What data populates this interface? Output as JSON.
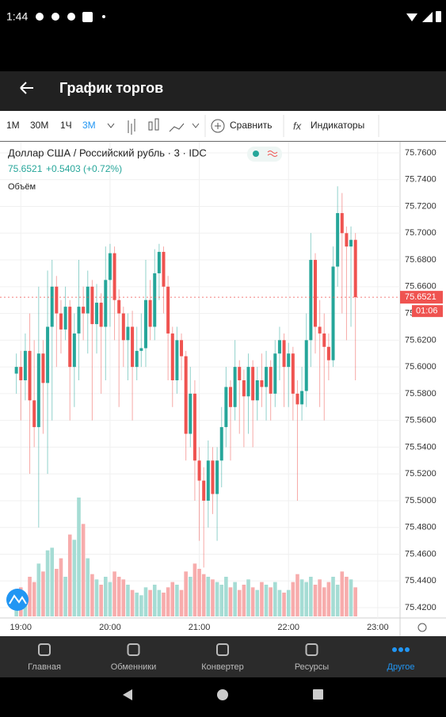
{
  "status_bar": {
    "time": "1:44"
  },
  "app_bar": {
    "title": "График торгов"
  },
  "toolbar": {
    "intervals": [
      "1М",
      "30М",
      "1Ч",
      "3М"
    ],
    "active_interval": 3,
    "compare": "Сравнить",
    "indicators_icon": "fx",
    "indicators": "Индикаторы"
  },
  "chart_data": {
    "type": "candlestick",
    "title": "Доллар США / Российский рубль · 3 · IDC",
    "price": "75.6521",
    "change": "+0.5403 (+0.72%)",
    "volume_label": "Объём",
    "countdown": "01:06",
    "up_color": "#26a69a",
    "down_color": "#ef5350",
    "up_volume_color": "#a5dcd4",
    "down_volume_color": "#f7acac",
    "grid": true,
    "xlim": [
      "18:46",
      "23:15"
    ],
    "xticks": [
      "19:00",
      "20:00",
      "21:00",
      "22:00",
      "23:00"
    ],
    "ylim": [
      75.4135,
      75.7665
    ],
    "yticks": [
      {
        "value": 75.42,
        "label": "75.4200"
      },
      {
        "value": 75.44,
        "label": "75.4400"
      },
      {
        "value": 75.46,
        "label": "75.4600"
      },
      {
        "value": 75.48,
        "label": "75.4800"
      },
      {
        "value": 75.5,
        "label": "75.5000"
      },
      {
        "value": 75.52,
        "label": "75.5200"
      },
      {
        "value": 75.54,
        "label": "75.5400"
      },
      {
        "value": 75.56,
        "label": "75.5600"
      },
      {
        "value": 75.58,
        "label": "75.5800"
      },
      {
        "value": 75.6,
        "label": "75.6000"
      },
      {
        "value": 75.62,
        "label": "75.6200"
      },
      {
        "value": 75.64,
        "label": "75.6400"
      },
      {
        "value": 75.66,
        "label": "75.6600"
      },
      {
        "value": 75.68,
        "label": "75.6800"
      },
      {
        "value": 75.7,
        "label": "75.7000"
      },
      {
        "value": 75.72,
        "label": "75.7200"
      },
      {
        "value": 75.74,
        "label": "75.7400"
      },
      {
        "value": 75.76,
        "label": "75.7600"
      }
    ],
    "candles": [
      {
        "x": "18:57",
        "o": 75.595,
        "h": 75.61,
        "l": 75.58,
        "c": 75.6,
        "v": 18
      },
      {
        "x": "19:00",
        "o": 75.6,
        "h": 75.612,
        "l": 75.56,
        "c": 75.59,
        "v": 22
      },
      {
        "x": "19:03",
        "o": 75.59,
        "h": 75.625,
        "l": 75.575,
        "c": 75.612,
        "v": 16
      },
      {
        "x": "19:06",
        "o": 75.612,
        "h": 75.64,
        "l": 75.52,
        "c": 75.575,
        "v": 30
      },
      {
        "x": "19:09",
        "o": 75.575,
        "h": 75.62,
        "l": 75.54,
        "c": 75.555,
        "v": 26
      },
      {
        "x": "19:12",
        "o": 75.555,
        "h": 75.66,
        "l": 75.48,
        "c": 75.61,
        "v": 40
      },
      {
        "x": "19:15",
        "o": 75.61,
        "h": 75.62,
        "l": 75.55,
        "c": 75.588,
        "v": 34
      },
      {
        "x": "19:18",
        "o": 75.588,
        "h": 75.672,
        "l": 75.52,
        "c": 75.63,
        "v": 50
      },
      {
        "x": "19:21",
        "o": 75.63,
        "h": 75.68,
        "l": 75.56,
        "c": 75.66,
        "v": 52
      },
      {
        "x": "19:24",
        "o": 75.66,
        "h": 75.668,
        "l": 75.6,
        "c": 75.64,
        "v": 36
      },
      {
        "x": "19:27",
        "o": 75.64,
        "h": 75.65,
        "l": 75.61,
        "c": 75.628,
        "v": 44
      },
      {
        "x": "19:30",
        "o": 75.628,
        "h": 75.66,
        "l": 75.62,
        "c": 75.645,
        "v": 30
      },
      {
        "x": "19:33",
        "o": 75.645,
        "h": 75.65,
        "l": 75.56,
        "c": 75.6,
        "v": 62
      },
      {
        "x": "19:36",
        "o": 75.6,
        "h": 75.64,
        "l": 75.57,
        "c": 75.625,
        "v": 58
      },
      {
        "x": "19:39",
        "o": 75.625,
        "h": 75.68,
        "l": 75.59,
        "c": 75.645,
        "v": 90
      },
      {
        "x": "19:42",
        "o": 75.645,
        "h": 75.66,
        "l": 75.62,
        "c": 75.64,
        "v": 70
      },
      {
        "x": "19:45",
        "o": 75.64,
        "h": 75.672,
        "l": 75.61,
        "c": 75.66,
        "v": 44
      },
      {
        "x": "19:48",
        "o": 75.66,
        "h": 75.665,
        "l": 75.56,
        "c": 75.632,
        "v": 32
      },
      {
        "x": "19:51",
        "o": 75.632,
        "h": 75.662,
        "l": 75.61,
        "c": 75.648,
        "v": 28
      },
      {
        "x": "19:54",
        "o": 75.648,
        "h": 75.655,
        "l": 75.58,
        "c": 75.63,
        "v": 24
      },
      {
        "x": "19:57",
        "o": 75.63,
        "h": 75.69,
        "l": 75.59,
        "c": 75.665,
        "v": 30
      },
      {
        "x": "20:00",
        "o": 75.665,
        "h": 75.692,
        "l": 75.63,
        "c": 75.685,
        "v": 26
      },
      {
        "x": "20:03",
        "o": 75.685,
        "h": 75.69,
        "l": 75.62,
        "c": 75.65,
        "v": 34
      },
      {
        "x": "20:06",
        "o": 75.65,
        "h": 75.658,
        "l": 75.57,
        "c": 75.64,
        "v": 30
      },
      {
        "x": "20:09",
        "o": 75.64,
        "h": 75.645,
        "l": 75.6,
        "c": 75.62,
        "v": 28
      },
      {
        "x": "20:12",
        "o": 75.62,
        "h": 75.64,
        "l": 75.59,
        "c": 75.63,
        "v": 24
      },
      {
        "x": "20:15",
        "o": 75.63,
        "h": 75.642,
        "l": 75.56,
        "c": 75.6,
        "v": 20
      },
      {
        "x": "20:18",
        "o": 75.6,
        "h": 75.63,
        "l": 75.59,
        "c": 75.612,
        "v": 18
      },
      {
        "x": "20:21",
        "o": 75.612,
        "h": 75.64,
        "l": 75.6,
        "c": 75.614,
        "v": 16
      },
      {
        "x": "20:24",
        "o": 75.614,
        "h": 75.68,
        "l": 75.6,
        "c": 75.65,
        "v": 22
      },
      {
        "x": "20:27",
        "o": 75.65,
        "h": 75.665,
        "l": 75.62,
        "c": 75.63,
        "v": 20
      },
      {
        "x": "20:30",
        "o": 75.63,
        "h": 75.688,
        "l": 75.62,
        "c": 75.67,
        "v": 24
      },
      {
        "x": "20:33",
        "o": 75.67,
        "h": 75.692,
        "l": 75.65,
        "c": 75.686,
        "v": 20
      },
      {
        "x": "20:36",
        "o": 75.686,
        "h": 75.69,
        "l": 75.64,
        "c": 75.66,
        "v": 18
      },
      {
        "x": "20:39",
        "o": 75.66,
        "h": 75.668,
        "l": 75.59,
        "c": 75.625,
        "v": 22
      },
      {
        "x": "20:42",
        "o": 75.625,
        "h": 75.63,
        "l": 75.57,
        "c": 75.59,
        "v": 26
      },
      {
        "x": "20:45",
        "o": 75.59,
        "h": 75.63,
        "l": 75.58,
        "c": 75.62,
        "v": 24
      },
      {
        "x": "20:48",
        "o": 75.62,
        "h": 75.625,
        "l": 75.59,
        "c": 75.608,
        "v": 20
      },
      {
        "x": "20:51",
        "o": 75.608,
        "h": 75.612,
        "l": 75.53,
        "c": 75.55,
        "v": 34
      },
      {
        "x": "20:54",
        "o": 75.55,
        "h": 75.6,
        "l": 75.54,
        "c": 75.58,
        "v": 30
      },
      {
        "x": "20:57",
        "o": 75.58,
        "h": 75.59,
        "l": 75.5,
        "c": 75.53,
        "v": 40
      },
      {
        "x": "21:00",
        "o": 75.53,
        "h": 75.54,
        "l": 75.47,
        "c": 75.515,
        "v": 36
      },
      {
        "x": "21:03",
        "o": 75.515,
        "h": 75.525,
        "l": 75.45,
        "c": 75.5,
        "v": 32
      },
      {
        "x": "21:06",
        "o": 75.5,
        "h": 75.545,
        "l": 75.48,
        "c": 75.53,
        "v": 30
      },
      {
        "x": "21:09",
        "o": 75.53,
        "h": 75.54,
        "l": 75.49,
        "c": 75.505,
        "v": 28
      },
      {
        "x": "21:12",
        "o": 75.505,
        "h": 75.54,
        "l": 75.47,
        "c": 75.53,
        "v": 26
      },
      {
        "x": "21:15",
        "o": 75.53,
        "h": 75.57,
        "l": 75.51,
        "c": 75.555,
        "v": 24
      },
      {
        "x": "21:18",
        "o": 75.555,
        "h": 75.6,
        "l": 75.54,
        "c": 75.585,
        "v": 30
      },
      {
        "x": "21:21",
        "o": 75.585,
        "h": 75.59,
        "l": 75.53,
        "c": 75.57,
        "v": 22
      },
      {
        "x": "21:24",
        "o": 75.57,
        "h": 75.62,
        "l": 75.56,
        "c": 75.6,
        "v": 26
      },
      {
        "x": "21:27",
        "o": 75.6,
        "h": 75.605,
        "l": 75.55,
        "c": 75.59,
        "v": 20
      },
      {
        "x": "21:30",
        "o": 75.59,
        "h": 75.598,
        "l": 75.54,
        "c": 75.578,
        "v": 24
      },
      {
        "x": "21:33",
        "o": 75.578,
        "h": 75.61,
        "l": 75.55,
        "c": 75.6,
        "v": 28
      },
      {
        "x": "21:36",
        "o": 75.6,
        "h": 75.605,
        "l": 75.54,
        "c": 75.575,
        "v": 22
      },
      {
        "x": "21:39",
        "o": 75.575,
        "h": 75.6,
        "l": 75.56,
        "c": 75.59,
        "v": 20
      },
      {
        "x": "21:42",
        "o": 75.59,
        "h": 75.61,
        "l": 75.57,
        "c": 75.585,
        "v": 26
      },
      {
        "x": "21:45",
        "o": 75.585,
        "h": 75.612,
        "l": 75.56,
        "c": 75.6,
        "v": 24
      },
      {
        "x": "21:48",
        "o": 75.6,
        "h": 75.605,
        "l": 75.56,
        "c": 75.58,
        "v": 22
      },
      {
        "x": "21:51",
        "o": 75.58,
        "h": 75.62,
        "l": 75.57,
        "c": 75.61,
        "v": 26
      },
      {
        "x": "21:54",
        "o": 75.61,
        "h": 75.63,
        "l": 75.59,
        "c": 75.62,
        "v": 20
      },
      {
        "x": "21:57",
        "o": 75.62,
        "h": 75.625,
        "l": 75.57,
        "c": 75.6,
        "v": 18
      },
      {
        "x": "22:00",
        "o": 75.6,
        "h": 75.618,
        "l": 75.57,
        "c": 75.61,
        "v": 20
      },
      {
        "x": "22:03",
        "o": 75.61,
        "h": 75.615,
        "l": 75.56,
        "c": 75.58,
        "v": 26
      },
      {
        "x": "22:06",
        "o": 75.58,
        "h": 75.59,
        "l": 75.5,
        "c": 75.572,
        "v": 32
      },
      {
        "x": "22:09",
        "o": 75.572,
        "h": 75.6,
        "l": 75.56,
        "c": 75.582,
        "v": 28
      },
      {
        "x": "22:12",
        "o": 75.582,
        "h": 75.64,
        "l": 75.57,
        "c": 75.62,
        "v": 26
      },
      {
        "x": "22:15",
        "o": 75.62,
        "h": 75.7,
        "l": 75.6,
        "c": 75.68,
        "v": 30
      },
      {
        "x": "22:18",
        "o": 75.68,
        "h": 75.685,
        "l": 75.61,
        "c": 75.63,
        "v": 24
      },
      {
        "x": "22:21",
        "o": 75.63,
        "h": 75.65,
        "l": 75.57,
        "c": 75.625,
        "v": 28
      },
      {
        "x": "22:24",
        "o": 75.625,
        "h": 75.64,
        "l": 75.56,
        "c": 75.615,
        "v": 22
      },
      {
        "x": "22:27",
        "o": 75.615,
        "h": 75.625,
        "l": 75.59,
        "c": 75.605,
        "v": 26
      },
      {
        "x": "22:30",
        "o": 75.605,
        "h": 75.69,
        "l": 75.6,
        "c": 75.675,
        "v": 30
      },
      {
        "x": "22:33",
        "o": 75.675,
        "h": 75.735,
        "l": 75.66,
        "c": 75.715,
        "v": 24
      },
      {
        "x": "22:36",
        "o": 75.715,
        "h": 75.73,
        "l": 75.64,
        "c": 75.7,
        "v": 34
      },
      {
        "x": "22:39",
        "o": 75.7,
        "h": 75.705,
        "l": 75.62,
        "c": 75.69,
        "v": 30
      },
      {
        "x": "22:42",
        "o": 75.69,
        "h": 75.705,
        "l": 75.63,
        "c": 75.695,
        "v": 28
      },
      {
        "x": "22:45",
        "o": 75.695,
        "h": 75.7,
        "l": 75.59,
        "c": 75.6521,
        "v": 22
      }
    ]
  },
  "bottom_nav": {
    "items": [
      "Главная",
      "Обменники",
      "Конвертер",
      "Ресурсы",
      "Другое"
    ],
    "active": 4
  }
}
